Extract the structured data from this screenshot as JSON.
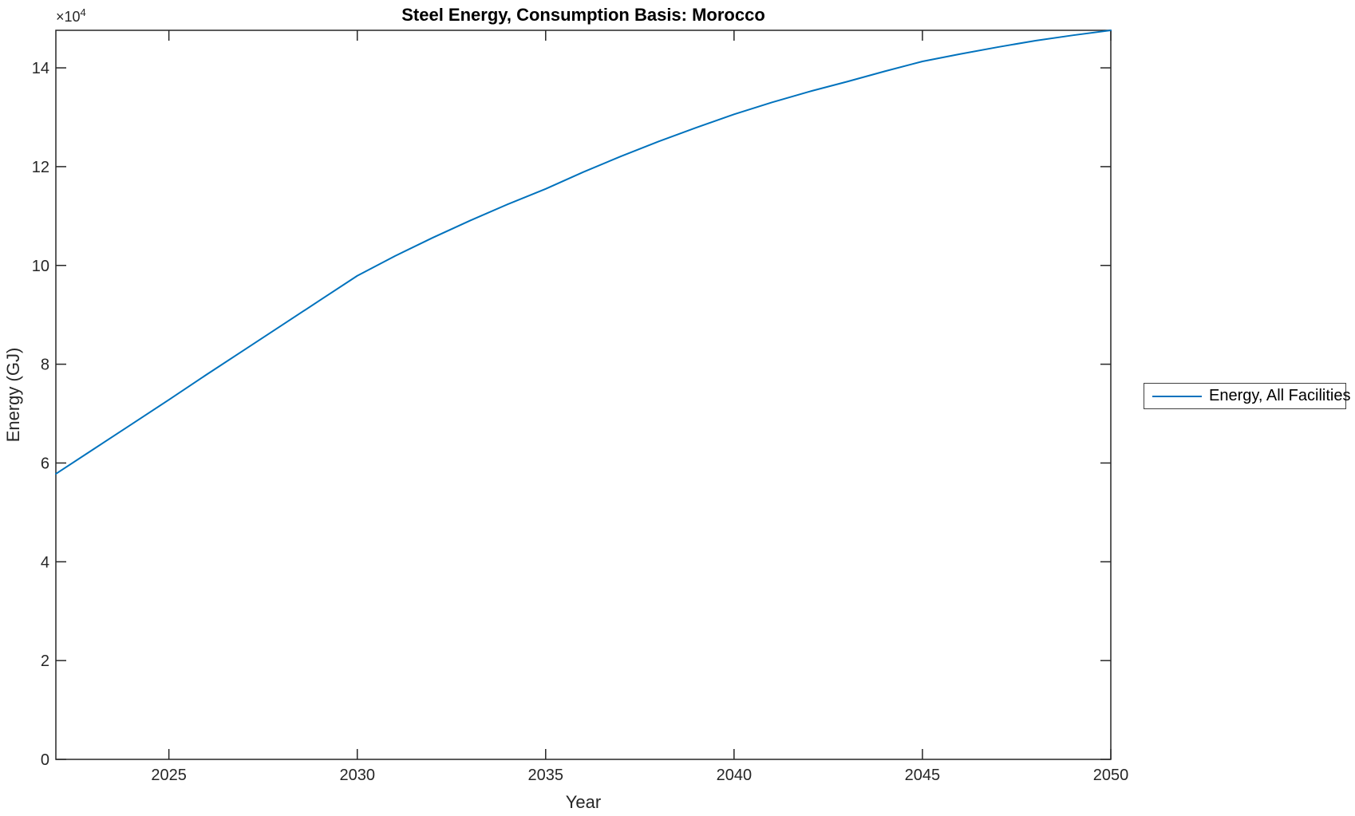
{
  "chart_data": {
    "type": "line",
    "title": "Steel Energy, Consumption Basis: Morocco",
    "xlabel": "Year",
    "ylabel": "Energy (GJ)",
    "y_axis_multiplier": {
      "base": "×10",
      "exponent": "4"
    },
    "grid": false,
    "legend_position": "outside-right",
    "axes_color": "#262626",
    "xlim": [
      2022,
      2050
    ],
    "ylim": [
      0,
      147600
    ],
    "xticks": {
      "values": [
        2025,
        2030,
        2035,
        2040,
        2045,
        2050
      ],
      "labels": [
        "2025",
        "2030",
        "2035",
        "2040",
        "2045",
        "2050"
      ]
    },
    "yticks": {
      "values": [
        0,
        20000,
        40000,
        60000,
        80000,
        100000,
        120000,
        140000
      ],
      "labels": [
        "0",
        "2",
        "4",
        "6",
        "8",
        "10",
        "12",
        "14"
      ]
    },
    "x": [
      2022,
      2023,
      2024,
      2025,
      2026,
      2027,
      2028,
      2029,
      2030,
      2031,
      2032,
      2033,
      2034,
      2035,
      2036,
      2037,
      2038,
      2039,
      2040,
      2041,
      2042,
      2043,
      2044,
      2045,
      2046,
      2047,
      2048,
      2049,
      2050
    ],
    "series": [
      {
        "name": "Energy, All Facilities",
        "color": "#0072BD",
        "values": [
          57800,
          62800,
          67800,
          72800,
          77900,
          82900,
          87900,
          92900,
          97900,
          101900,
          105600,
          109100,
          112400,
          115500,
          118900,
          122100,
          125100,
          127900,
          130600,
          133000,
          135200,
          137200,
          139300,
          141300,
          142800,
          144200,
          145500,
          146600,
          147600
        ]
      }
    ]
  }
}
